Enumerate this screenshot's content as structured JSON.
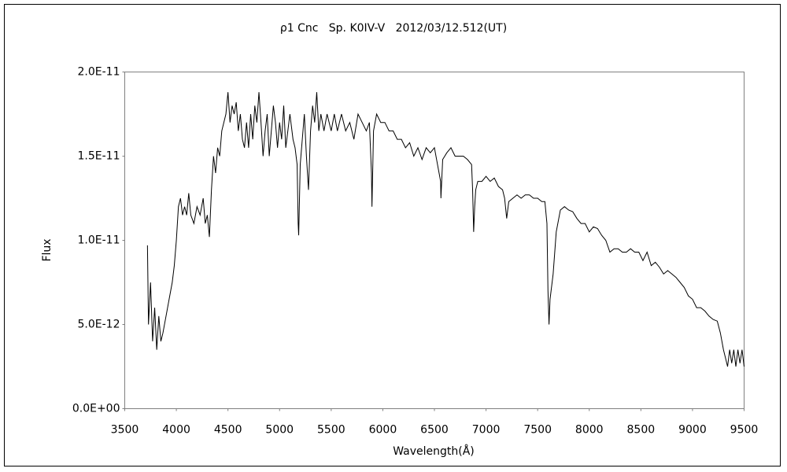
{
  "chart_data": {
    "type": "line",
    "title": "ρ1 Cnc   Sp. K0IV-V   2012/03/12.512(UT)",
    "x_label": "Wavelength(Å)",
    "y_label": "Flux",
    "color": "#000000",
    "xlim": [
      3500,
      9500
    ],
    "xticks": [
      3500,
      4000,
      4500,
      5000,
      5500,
      6000,
      6500,
      7000,
      7500,
      8000,
      8500,
      9000,
      9500
    ],
    "ylim": [
      0,
      2e-11
    ],
    "yticks": [
      {
        "value": 0,
        "label": "0.0E+00"
      },
      {
        "value": 5e-12,
        "label": "5.0E-12"
      },
      {
        "value": 1e-11,
        "label": "1.0E-11"
      },
      {
        "value": 1.5e-11,
        "label": "1.5E-11"
      },
      {
        "value": 2e-11,
        "label": "2.0E-11"
      }
    ],
    "x": [
      3720,
      3730,
      3750,
      3770,
      3790,
      3810,
      3830,
      3850,
      3870,
      3900,
      3930,
      3960,
      3980,
      4000,
      4020,
      4040,
      4060,
      4080,
      4100,
      4120,
      4140,
      4170,
      4200,
      4230,
      4260,
      4280,
      4300,
      4320,
      4340,
      4360,
      4380,
      4400,
      4420,
      4440,
      4460,
      4480,
      4500,
      4520,
      4540,
      4560,
      4580,
      4600,
      4620,
      4640,
      4660,
      4680,
      4700,
      4720,
      4740,
      4760,
      4780,
      4800,
      4820,
      4840,
      4860,
      4880,
      4900,
      4920,
      4940,
      4960,
      4980,
      5000,
      5020,
      5040,
      5060,
      5080,
      5100,
      5130,
      5150,
      5170,
      5180,
      5185,
      5200,
      5220,
      5240,
      5260,
      5280,
      5300,
      5320,
      5340,
      5360,
      5380,
      5400,
      5430,
      5460,
      5500,
      5530,
      5560,
      5600,
      5640,
      5680,
      5720,
      5760,
      5800,
      5840,
      5870,
      5890,
      5895,
      5910,
      5940,
      5980,
      6020,
      6060,
      6100,
      6140,
      6180,
      6220,
      6260,
      6300,
      6340,
      6380,
      6420,
      6460,
      6500,
      6530,
      6560,
      6563,
      6580,
      6620,
      6660,
      6700,
      6740,
      6780,
      6820,
      6860,
      6870,
      6880,
      6890,
      6900,
      6920,
      6960,
      7000,
      7040,
      7080,
      7120,
      7160,
      7180,
      7200,
      7220,
      7260,
      7300,
      7340,
      7380,
      7420,
      7460,
      7500,
      7540,
      7570,
      7590,
      7600,
      7610,
      7620,
      7650,
      7680,
      7720,
      7760,
      7800,
      7840,
      7880,
      7920,
      7960,
      8000,
      8040,
      8080,
      8120,
      8160,
      8200,
      8240,
      8280,
      8320,
      8360,
      8400,
      8440,
      8480,
      8520,
      8560,
      8600,
      8640,
      8680,
      8720,
      8760,
      8800,
      8840,
      8880,
      8920,
      8960,
      9000,
      9040,
      9080,
      9120,
      9160,
      9200,
      9240,
      9270,
      9300,
      9320,
      9340,
      9360,
      9380,
      9400,
      9420,
      9440,
      9460,
      9480,
      9500
    ],
    "values": [
      9.7e-12,
      5e-12,
      7.5e-12,
      4e-12,
      6e-12,
      3.5e-12,
      5.5e-12,
      4e-12,
      4.5e-12,
      5.5e-12,
      6.5e-12,
      7.5e-12,
      8.5e-12,
      1e-11,
      1.2e-11,
      1.25e-11,
      1.15e-11,
      1.2e-11,
      1.15e-11,
      1.28e-11,
      1.15e-11,
      1.1e-11,
      1.2e-11,
      1.15e-11,
      1.25e-11,
      1.1e-11,
      1.15e-11,
      1.02e-11,
      1.3e-11,
      1.5e-11,
      1.4e-11,
      1.55e-11,
      1.5e-11,
      1.65e-11,
      1.7e-11,
      1.75e-11,
      1.88e-11,
      1.7e-11,
      1.8e-11,
      1.75e-11,
      1.82e-11,
      1.65e-11,
      1.75e-11,
      1.6e-11,
      1.55e-11,
      1.7e-11,
      1.55e-11,
      1.75e-11,
      1.6e-11,
      1.8e-11,
      1.7e-11,
      1.88e-11,
      1.7e-11,
      1.5e-11,
      1.65e-11,
      1.75e-11,
      1.5e-11,
      1.65e-11,
      1.8e-11,
      1.7e-11,
      1.55e-11,
      1.7e-11,
      1.6e-11,
      1.8e-11,
      1.55e-11,
      1.65e-11,
      1.75e-11,
      1.6e-11,
      1.55e-11,
      1.45e-11,
      1.1e-11,
      1.03e-11,
      1.45e-11,
      1.6e-11,
      1.75e-11,
      1.5e-11,
      1.3e-11,
      1.65e-11,
      1.8e-11,
      1.7e-11,
      1.88e-11,
      1.65e-11,
      1.75e-11,
      1.65e-11,
      1.75e-11,
      1.65e-11,
      1.75e-11,
      1.65e-11,
      1.75e-11,
      1.65e-11,
      1.7e-11,
      1.6e-11,
      1.75e-11,
      1.7e-11,
      1.65e-11,
      1.7e-11,
      1.4e-11,
      1.2e-11,
      1.65e-11,
      1.75e-11,
      1.7e-11,
      1.7e-11,
      1.65e-11,
      1.65e-11,
      1.6e-11,
      1.6e-11,
      1.55e-11,
      1.58e-11,
      1.5e-11,
      1.55e-11,
      1.48e-11,
      1.55e-11,
      1.52e-11,
      1.55e-11,
      1.45e-11,
      1.35e-11,
      1.25e-11,
      1.48e-11,
      1.52e-11,
      1.55e-11,
      1.5e-11,
      1.5e-11,
      1.5e-11,
      1.48e-11,
      1.45e-11,
      1.3e-11,
      1.05e-11,
      1.2e-11,
      1.3e-11,
      1.35e-11,
      1.35e-11,
      1.38e-11,
      1.35e-11,
      1.37e-11,
      1.32e-11,
      1.3e-11,
      1.25e-11,
      1.13e-11,
      1.23e-11,
      1.25e-11,
      1.27e-11,
      1.25e-11,
      1.27e-11,
      1.27e-11,
      1.25e-11,
      1.25e-11,
      1.23e-11,
      1.23e-11,
      1.1e-11,
      7e-12,
      5e-12,
      6.5e-12,
      8e-12,
      1.05e-11,
      1.18e-11,
      1.2e-11,
      1.18e-11,
      1.17e-11,
      1.13e-11,
      1.1e-11,
      1.1e-11,
      1.05e-11,
      1.08e-11,
      1.07e-11,
      1.03e-11,
      1e-11,
      9.3e-12,
      9.5e-12,
      9.5e-12,
      9.3e-12,
      9.3e-12,
      9.5e-12,
      9.3e-12,
      9.3e-12,
      8.8e-12,
      9.3e-12,
      8.5e-12,
      8.7e-12,
      8.4e-12,
      8e-12,
      8.2e-12,
      8e-12,
      7.8e-12,
      7.5e-12,
      7.2e-12,
      6.7e-12,
      6.5e-12,
      6e-12,
      6e-12,
      5.8e-12,
      5.5e-12,
      5.3e-12,
      5.2e-12,
      4.5e-12,
      3.5e-12,
      3e-12,
      2.5e-12,
      3.5e-12,
      2.7e-12,
      3.5e-12,
      2.5e-12,
      3.5e-12,
      2.7e-12,
      3.5e-12,
      2.5e-12
    ]
  }
}
